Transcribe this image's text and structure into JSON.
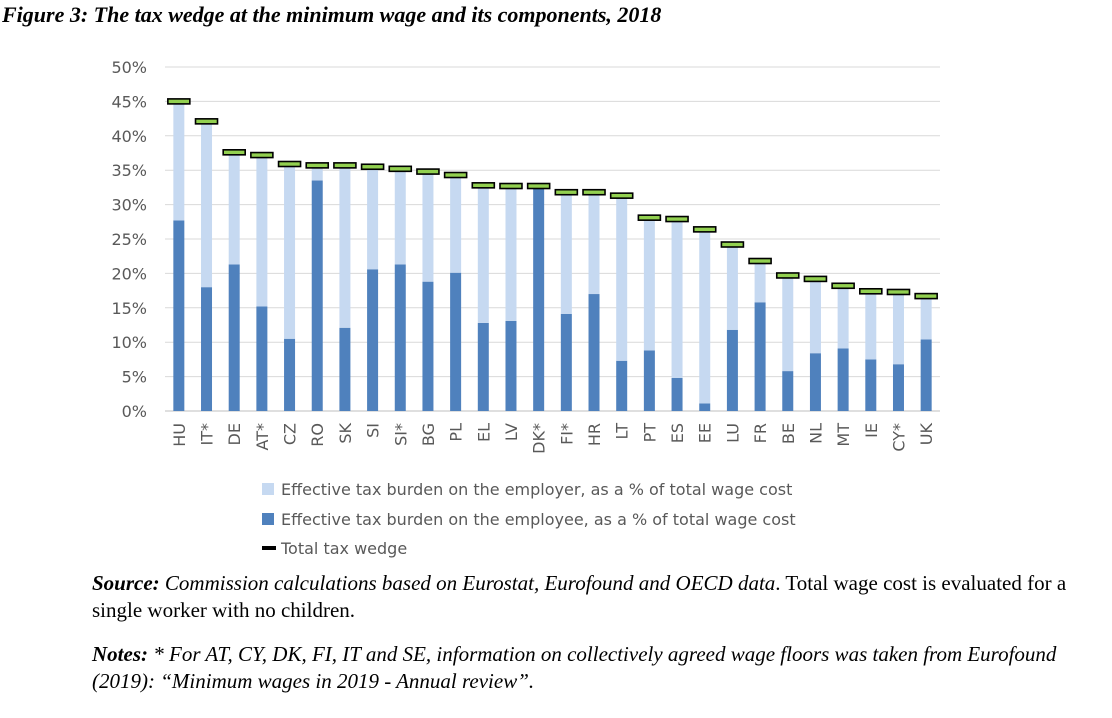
{
  "figure": {
    "title": "Figure 3: The tax wedge at the minimum wage and its components, 2018"
  },
  "chart_data": {
    "type": "bar",
    "stacked": true,
    "categories": [
      "HU",
      "IT*",
      "DE",
      "AT*",
      "CZ",
      "RO",
      "SK",
      "SI",
      "SI*",
      "BG",
      "PL",
      "EL",
      "LV",
      "DK*",
      "FI*",
      "HR",
      "LT",
      "PT",
      "ES",
      "EE",
      "LU",
      "FR",
      "BE",
      "NL",
      "MT",
      "IE",
      "CY*",
      "UK"
    ],
    "series": [
      {
        "name": "Effective tax burden on the employee, as a % of total wage cost",
        "color": "#4f81bd",
        "values": [
          27.7,
          18.0,
          21.3,
          15.2,
          10.5,
          33.5,
          12.1,
          20.6,
          21.3,
          18.8,
          20.1,
          12.8,
          13.1,
          32.4,
          14.1,
          17.0,
          7.3,
          8.8,
          4.8,
          1.1,
          11.8,
          15.8,
          5.8,
          8.4,
          9.1,
          7.5,
          6.8,
          10.4
        ]
      },
      {
        "name": "Effective tax burden on the employer, as a % of total wage cost",
        "color": "#c6d9f1",
        "values": [
          17.3,
          24.1,
          16.3,
          22.0,
          25.4,
          2.2,
          23.6,
          14.9,
          13.9,
          16.0,
          14.2,
          20.0,
          19.6,
          0.3,
          17.7,
          14.8,
          24.0,
          19.3,
          23.1,
          25.3,
          12.4,
          6.0,
          13.9,
          10.8,
          9.1,
          9.9,
          10.5,
          6.3
        ]
      }
    ],
    "total_tax_wedge": {
      "name": "Total tax wedge",
      "color": "#000000",
      "fill": "#92d050",
      "values": [
        45.0,
        42.1,
        37.6,
        37.2,
        35.9,
        35.7,
        35.7,
        35.5,
        35.2,
        34.8,
        34.3,
        32.8,
        32.7,
        32.7,
        31.8,
        31.8,
        31.3,
        28.1,
        27.9,
        26.4,
        24.2,
        21.8,
        19.7,
        19.2,
        18.2,
        17.4,
        17.3,
        16.7
      ]
    },
    "legend_order": [
      "employer",
      "employee",
      "total"
    ],
    "ylim": [
      0,
      50
    ],
    "yticks": [
      "0%",
      "5%",
      "10%",
      "15%",
      "20%",
      "25%",
      "30%",
      "35%",
      "40%",
      "45%",
      "50%"
    ],
    "grid": true,
    "legend_position": "bottom"
  },
  "caption": {
    "source_label": "Source:",
    "source_italic": " Commission calculations based on Eurostat, Eurofound and OECD data",
    "source_rest": ". Total wage cost is evaluated for a single worker with no children.",
    "notes_label": "Notes:",
    "notes_text": " * For AT, CY, DK, FI, IT and SE, information on collectively agreed wage floors was taken from Eurofound (2019): “Minimum wages in 2019 - Annual review”."
  }
}
